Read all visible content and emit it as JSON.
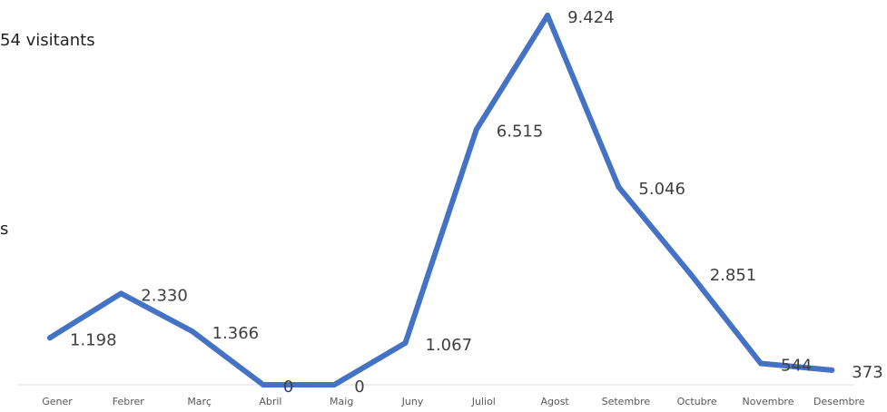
{
  "fragments": {
    "top": "54 visitants",
    "middle": "s"
  },
  "chart_data": {
    "type": "line",
    "title": "",
    "xlabel": "",
    "ylabel": "",
    "categories": [
      "Gener",
      "Febrer",
      "Març",
      "Abril",
      "Maig",
      "Juny",
      "Juliol",
      "Agost",
      "Setembre",
      "Octubre",
      "Novembre",
      "Desembre"
    ],
    "series": [
      {
        "values": [
          1198,
          2330,
          1366,
          0,
          0,
          1067,
          6515,
          9424,
          5046,
          2851,
          544,
          373
        ],
        "labels": [
          "1.198",
          "2.330",
          "1.366",
          "0",
          "0",
          "1.067",
          "6.515",
          "9.424",
          "5.046",
          "2.851",
          "544",
          "373"
        ]
      }
    ],
    "ylim": [
      0,
      9424
    ],
    "color": "#4472C4",
    "grid": false,
    "legend": "none"
  }
}
